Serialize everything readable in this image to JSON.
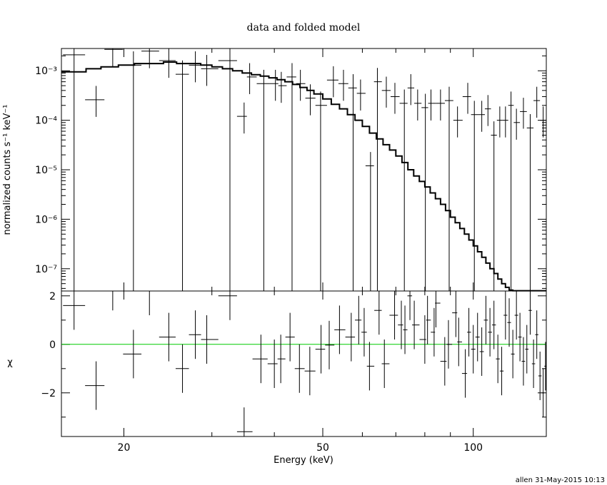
{
  "chart_data": [
    {
      "type": "line",
      "title": "data and folded model",
      "ylabel": "normalized counts s⁻¹ keV⁻¹",
      "xscale": "log",
      "yscale": "log",
      "xlim": [
        15,
        140
      ],
      "ylim_exponent": [
        -7.45,
        -2.55
      ],
      "yticks": [
        {
          "value": -3,
          "label": "10⁻³"
        },
        {
          "value": -4,
          "label": "10⁻⁴"
        },
        {
          "value": -5,
          "label": "10⁻⁵"
        },
        {
          "value": -6,
          "label": "10⁻⁶"
        },
        {
          "value": -7,
          "label": "10⁻⁷"
        }
      ],
      "series": [
        {
          "style": "data-crosses",
          "x": [
            15.9,
            17.6,
            19.0,
            20.9,
            22.5,
            24.6,
            26.2,
            27.8,
            29.3,
            32.6,
            34.8,
            35.7,
            38.1,
            40.2,
            41.3,
            43.4,
            45.1,
            47.2,
            49.5,
            52.5,
            55.0,
            57.5,
            59.5,
            62.3,
            64.3,
            67.0,
            69.7,
            72.8,
            75.0,
            77.4,
            80.2,
            82.3,
            86.0,
            89.5,
            93.0,
            97.5,
            100.5,
            104.0,
            107.0,
            110.0,
            113.0,
            116.0,
            119.0,
            122.0,
            126.0,
            130.0,
            134.0,
            138.0
          ],
          "y": [
            0.0021,
            0.00026,
            0.0027,
            0.0013,
            0.0025,
            0.0016,
            0.00085,
            0.0013,
            0.0011,
            0.0016,
            0.00012,
            0.00075,
            0.00055,
            0.00055,
            0.0005,
            0.00075,
            0.00055,
            0.00028,
            0.0002,
            0.00065,
            0.00055,
            0.00045,
            0.00035,
            1.2e-05,
            0.0006,
            0.0004,
            0.0003,
            0.00022,
            0.00045,
            0.00022,
            0.00018,
            0.00022,
            0.00022,
            0.00025,
            0.0001,
            0.0003,
            0.00013,
            0.00013,
            0.00017,
            5e-05,
            0.0001,
            0.0001,
            0.0002,
            9e-05,
            0.00015,
            7e-05,
            0.00025,
            0.0001
          ]
        },
        {
          "style": "model-step",
          "x": [
            15,
            16.8,
            18.0,
            19.5,
            21.0,
            22.5,
            24.0,
            25.5,
            27.0,
            28.5,
            30.0,
            31.5,
            33.0,
            34.5,
            36.0,
            37.5,
            39.0,
            40.5,
            42.0,
            43.5,
            45.0,
            46.5,
            48.0,
            50.0,
            52.0,
            54.0,
            56.0,
            58.0,
            60.0,
            62.0,
            64.0,
            66.0,
            68.0,
            70.0,
            72.0,
            74.0,
            76.0,
            78.0,
            80.0,
            82.0,
            84.0,
            86.0,
            88.0,
            90.0,
            92.0,
            94.0,
            96.0,
            98.0,
            100.0,
            102.0,
            104.0,
            106.0,
            108.0,
            110.0,
            112.0,
            114.0,
            116.0,
            118.0,
            120.0,
            122.0,
            124.0,
            126.0,
            128.0,
            130.0,
            132.0,
            134.0,
            136.0,
            138.0,
            140.0
          ],
          "y": [
            0.00095,
            0.0011,
            0.0012,
            0.0013,
            0.0014,
            0.0014,
            0.0015,
            0.0014,
            0.0014,
            0.0013,
            0.0012,
            0.0011,
            0.001,
            0.0009,
            0.00083,
            0.00078,
            0.00072,
            0.00066,
            0.0006,
            0.00053,
            0.00046,
            0.0004,
            0.00034,
            0.00027,
            0.00021,
            0.00017,
            0.00013,
            0.0001,
            7.5e-05,
            5.5e-05,
            4.2e-05,
            3.2e-05,
            2.5e-05,
            1.9e-05,
            1.4e-05,
            1e-05,
            7.5e-06,
            5.8e-06,
            4.5e-06,
            3.4e-06,
            2.6e-06,
            2e-06,
            1.5e-06,
            1.1e-06,
            8.5e-07,
            6.5e-07,
            5e-07,
            3.8e-07,
            2.9e-07,
            2.2e-07,
            1.7e-07,
            1.3e-07,
            1e-07,
            8e-08,
            6.2e-08,
            5e-08,
            4.2e-08,
            3.7e-08,
            3.6e-08,
            3.6e-08,
            3.6e-08,
            3.6e-08,
            3.6e-08,
            3.6e-08,
            3.6e-08,
            3.6e-08,
            3.6e-08,
            3.6e-08,
            3.6e-08
          ]
        }
      ]
    },
    {
      "type": "scatter",
      "ylabel": "χ",
      "xlabel": "Energy (keV)",
      "xscale": "log",
      "xlim": [
        15,
        140
      ],
      "ylim": [
        -3.8,
        2.2
      ],
      "xticks": [
        {
          "value": 20,
          "label": "20"
        },
        {
          "value": 50,
          "label": "50"
        },
        {
          "value": 100,
          "label": "100"
        }
      ],
      "yticks": [
        {
          "value": 2,
          "label": "2"
        },
        {
          "value": 0,
          "label": "0"
        },
        {
          "value": -2,
          "label": "−2"
        }
      ],
      "zero_line_color": "#00cc00",
      "series": [
        {
          "style": "residual-crosses",
          "x": [
            15.9,
            17.6,
            19.0,
            20.9,
            22.5,
            24.6,
            26.2,
            27.8,
            29.3,
            32.6,
            34.8,
            37.6,
            40.0,
            41.2,
            43.0,
            44.9,
            47.1,
            49.6,
            51.5,
            54.0,
            57.0,
            59.0,
            60.5,
            62.0,
            64.8,
            66.4,
            69.6,
            71.8,
            73.0,
            74.7,
            76.2,
            80.0,
            81.0,
            83.5,
            84.2,
            87.7,
            89.2,
            92.3,
            93.5,
            96.4,
            98.0,
            100.0,
            102.0,
            104.0,
            106.0,
            108.0,
            110.0,
            112.0,
            114.0,
            116.0,
            118.0,
            120.0,
            122.0,
            124.0,
            126.0,
            128.0,
            130.0,
            132.0,
            134.0,
            136.0,
            138.0,
            139.5
          ],
          "y": [
            1.6,
            -1.7,
            2.4,
            -0.4,
            2.2,
            0.3,
            -1.0,
            0.4,
            0.2,
            2.0,
            -3.6,
            -0.6,
            -0.8,
            -0.6,
            0.3,
            -1.0,
            -1.1,
            -0.2,
            -0.03,
            0.6,
            0.3,
            1.0,
            0.5,
            -0.9,
            1.4,
            -0.8,
            1.2,
            0.8,
            0.6,
            2.0,
            0.8,
            0.2,
            1.0,
            0.5,
            1.7,
            -0.7,
            0.0,
            1.3,
            0.1,
            -1.2,
            0.5,
            -0.2,
            0.3,
            -0.3,
            1.0,
            0.5,
            0.8,
            -0.6,
            -1.1,
            1.2,
            0.9,
            -0.4,
            1.2,
            0.3,
            -0.7,
            -0.2,
            1.4,
            -0.8,
            0.4,
            -1.3,
            -2.0,
            -0.9
          ]
        }
      ]
    }
  ],
  "footer": {
    "stamp": "allen 31-May-2015 10:13"
  }
}
